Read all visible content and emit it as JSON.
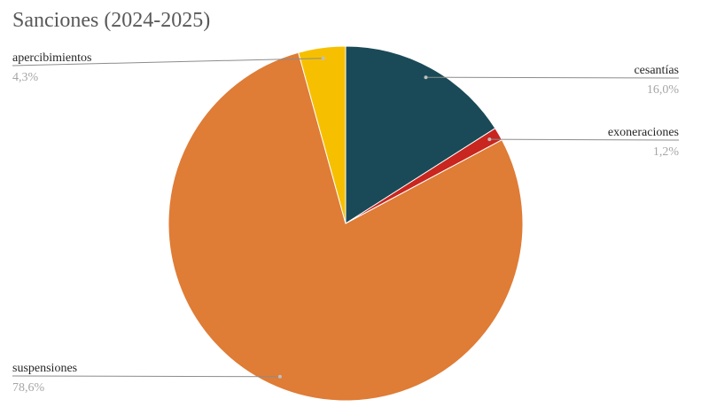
{
  "chart_data": {
    "type": "pie",
    "title": "Sanciones (2024-2025)",
    "categories": [
      "cesantías",
      "exoneraciones",
      "suspensiones",
      "apercibimientos"
    ],
    "values": [
      16.0,
      1.2,
      78.6,
      4.3
    ],
    "value_labels": [
      "16,0%",
      "1,2%",
      "78,6%",
      "4,3%"
    ],
    "colors": [
      "#1a4a57",
      "#c8261f",
      "#df7c36",
      "#f6c000"
    ]
  }
}
